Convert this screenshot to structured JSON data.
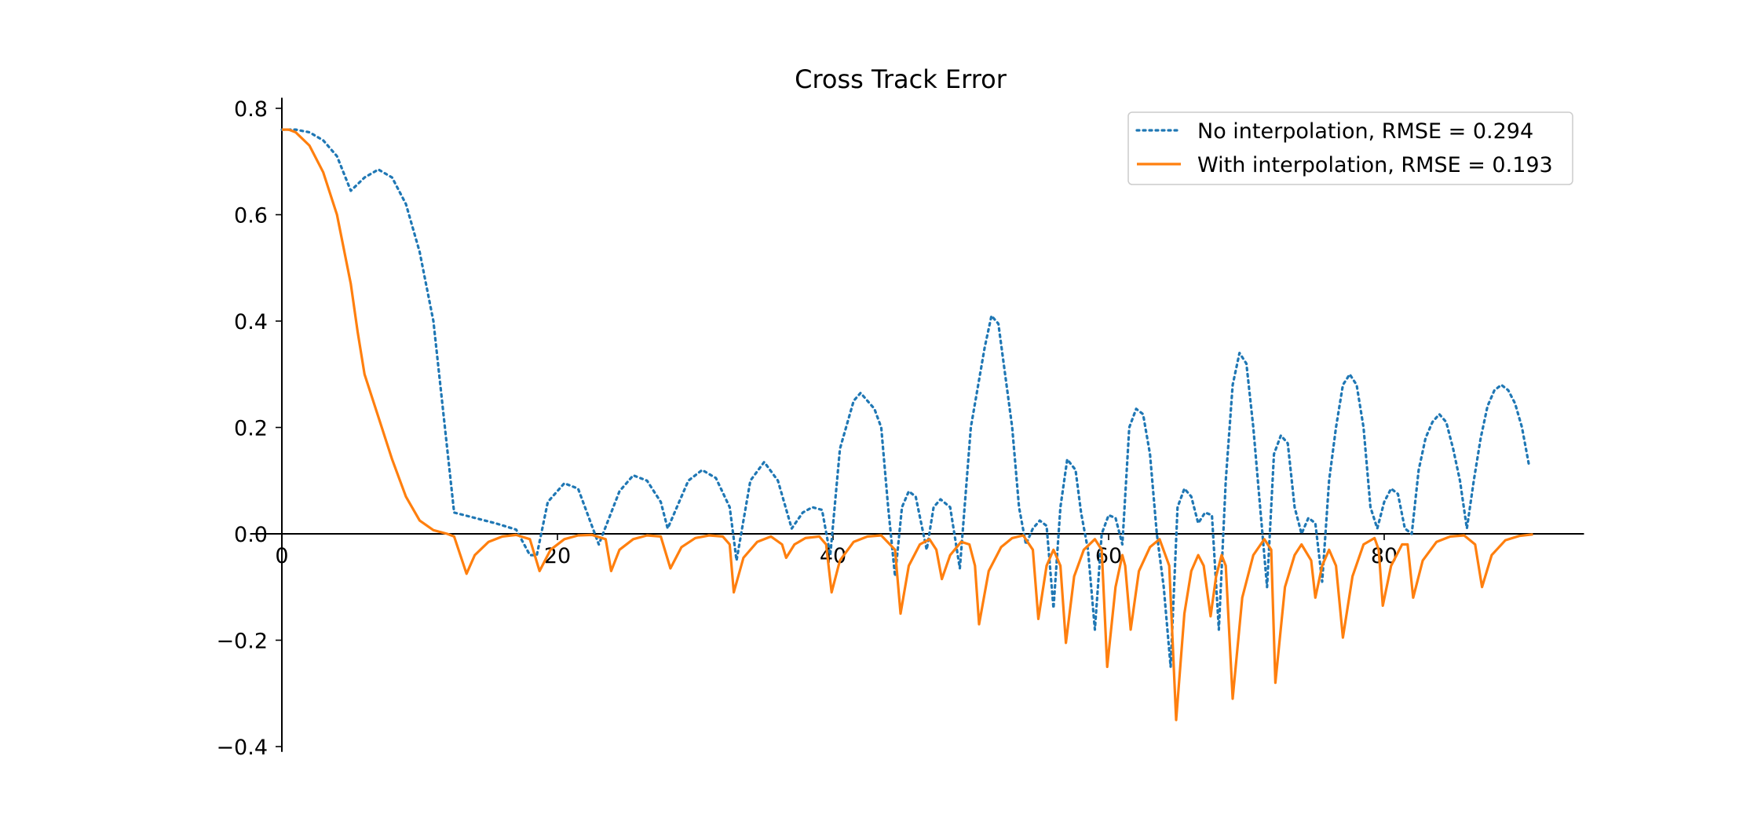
{
  "chart_data": {
    "type": "line",
    "title": "Cross Track Error",
    "xlabel": "",
    "ylabel": "",
    "xlim": [
      -2.3,
      94.5
    ],
    "ylim": [
      -0.41,
      0.82
    ],
    "x_ticks": [
      0,
      20,
      40,
      60,
      80
    ],
    "x_tick_labels": [
      "0",
      "20",
      "40",
      "60",
      "80"
    ],
    "y_ticks": [
      0.8,
      0.6,
      0.4,
      0.2,
      0.0,
      -0.2,
      -0.4
    ],
    "y_tick_labels": [
      "0.8",
      "0.6",
      "0.4",
      "0.2",
      "0.0",
      "−0.2",
      "−0.4"
    ],
    "grid": false,
    "legend_position": "top-right",
    "series": [
      {
        "name": "No interpolation, RMSE = 0.294",
        "style": "dotted",
        "color": "#1f77b4",
        "points": [
          [
            0,
            0.76
          ],
          [
            1,
            0.76
          ],
          [
            2,
            0.755
          ],
          [
            3,
            0.74
          ],
          [
            4,
            0.71
          ],
          [
            5,
            0.645
          ],
          [
            6,
            0.67
          ],
          [
            7,
            0.685
          ],
          [
            8,
            0.67
          ],
          [
            9,
            0.62
          ],
          [
            10,
            0.53
          ],
          [
            11,
            0.4
          ],
          [
            12.5,
            0.04
          ],
          [
            14,
            0.03
          ],
          [
            15.5,
            0.02
          ],
          [
            17,
            0.008
          ],
          [
            18,
            -0.04
          ],
          [
            18.5,
            -0.04
          ],
          [
            19.3,
            0.06
          ],
          [
            20.5,
            0.095
          ],
          [
            21.5,
            0.085
          ],
          [
            23,
            -0.02
          ],
          [
            24.5,
            0.08
          ],
          [
            25.5,
            0.11
          ],
          [
            26.5,
            0.1
          ],
          [
            27.5,
            0.06
          ],
          [
            28,
            0.01
          ],
          [
            29.5,
            0.1
          ],
          [
            30.5,
            0.12
          ],
          [
            31.5,
            0.105
          ],
          [
            32.5,
            0.05
          ],
          [
            33,
            -0.05
          ],
          [
            34,
            0.1
          ],
          [
            35,
            0.135
          ],
          [
            36,
            0.1
          ],
          [
            37,
            0.01
          ],
          [
            37.8,
            0.04
          ],
          [
            38.5,
            0.05
          ],
          [
            39.2,
            0.045
          ],
          [
            39.8,
            -0.04
          ],
          [
            40.5,
            0.16
          ],
          [
            41.5,
            0.25
          ],
          [
            42,
            0.265
          ],
          [
            43,
            0.235
          ],
          [
            43.5,
            0.2
          ],
          [
            44,
            0.05
          ],
          [
            44.5,
            -0.08
          ],
          [
            45,
            0.05
          ],
          [
            45.5,
            0.08
          ],
          [
            46,
            0.07
          ],
          [
            46.8,
            -0.03
          ],
          [
            47.3,
            0.05
          ],
          [
            47.8,
            0.065
          ],
          [
            48.5,
            0.05
          ],
          [
            49.2,
            -0.065
          ],
          [
            50,
            0.2
          ],
          [
            51,
            0.35
          ],
          [
            51.5,
            0.41
          ],
          [
            52,
            0.395
          ],
          [
            53,
            0.2
          ],
          [
            53.5,
            0.05
          ],
          [
            54,
            -0.02
          ],
          [
            54.5,
            0.01
          ],
          [
            55,
            0.025
          ],
          [
            55.5,
            0.015
          ],
          [
            56,
            -0.14
          ],
          [
            56.5,
            0.05
          ],
          [
            57,
            0.14
          ],
          [
            57.6,
            0.12
          ],
          [
            58,
            0.04
          ],
          [
            58.5,
            -0.03
          ],
          [
            59,
            -0.18
          ],
          [
            59.5,
            0.0
          ],
          [
            60,
            0.035
          ],
          [
            60.5,
            0.03
          ],
          [
            61,
            -0.02
          ],
          [
            61.5,
            0.2
          ],
          [
            62,
            0.235
          ],
          [
            62.5,
            0.225
          ],
          [
            63,
            0.15
          ],
          [
            63.5,
            0.0
          ],
          [
            64,
            -0.1
          ],
          [
            64.5,
            -0.25
          ],
          [
            65,
            0.05
          ],
          [
            65.5,
            0.085
          ],
          [
            66,
            0.07
          ],
          [
            66.5,
            0.02
          ],
          [
            67,
            0.04
          ],
          [
            67.5,
            0.035
          ],
          [
            68,
            -0.18
          ],
          [
            68.5,
            0.1
          ],
          [
            69,
            0.28
          ],
          [
            69.5,
            0.34
          ],
          [
            70,
            0.32
          ],
          [
            70.5,
            0.2
          ],
          [
            71,
            0.05
          ],
          [
            71.5,
            -0.1
          ],
          [
            72,
            0.15
          ],
          [
            72.5,
            0.185
          ],
          [
            73,
            0.17
          ],
          [
            73.5,
            0.05
          ],
          [
            74,
            0.0
          ],
          [
            74.5,
            0.03
          ],
          [
            75,
            0.02
          ],
          [
            75.5,
            -0.09
          ],
          [
            76,
            0.1
          ],
          [
            76.5,
            0.2
          ],
          [
            77,
            0.28
          ],
          [
            77.5,
            0.3
          ],
          [
            78,
            0.28
          ],
          [
            78.5,
            0.2
          ],
          [
            79,
            0.05
          ],
          [
            79.5,
            0.01
          ],
          [
            80,
            0.06
          ],
          [
            80.5,
            0.085
          ],
          [
            81,
            0.075
          ],
          [
            81.5,
            0.01
          ],
          [
            82,
            0.0
          ],
          [
            82.5,
            0.12
          ],
          [
            83,
            0.18
          ],
          [
            83.5,
            0.21
          ],
          [
            84,
            0.225
          ],
          [
            84.5,
            0.21
          ],
          [
            85,
            0.16
          ],
          [
            85.5,
            0.1
          ],
          [
            86,
            0.01
          ],
          [
            86.5,
            0.1
          ],
          [
            87,
            0.18
          ],
          [
            87.5,
            0.24
          ],
          [
            88,
            0.27
          ],
          [
            88.5,
            0.28
          ],
          [
            89,
            0.27
          ],
          [
            89.5,
            0.245
          ],
          [
            90,
            0.2
          ],
          [
            90.5,
            0.13
          ]
        ]
      },
      {
        "name": "With interpolation, RMSE = 0.193",
        "style": "solid",
        "color": "#ff7f0e",
        "points": [
          [
            0,
            0.76
          ],
          [
            0.5,
            0.76
          ],
          [
            1,
            0.755
          ],
          [
            2,
            0.73
          ],
          [
            3,
            0.68
          ],
          [
            4,
            0.6
          ],
          [
            5,
            0.47
          ],
          [
            5.5,
            0.38
          ],
          [
            6,
            0.3
          ],
          [
            7,
            0.22
          ],
          [
            8,
            0.14
          ],
          [
            9,
            0.07
          ],
          [
            10,
            0.025
          ],
          [
            11,
            0.007
          ],
          [
            12,
            0.0
          ],
          [
            12.5,
            -0.005
          ],
          [
            13.4,
            -0.075
          ],
          [
            14,
            -0.04
          ],
          [
            15,
            -0.015
          ],
          [
            16,
            -0.005
          ],
          [
            17,
            -0.002
          ],
          [
            18,
            -0.01
          ],
          [
            18.7,
            -0.07
          ],
          [
            19.5,
            -0.03
          ],
          [
            20.5,
            -0.01
          ],
          [
            21.5,
            -0.003
          ],
          [
            22.5,
            -0.002
          ],
          [
            23.5,
            -0.01
          ],
          [
            23.9,
            -0.07
          ],
          [
            24.5,
            -0.03
          ],
          [
            25.5,
            -0.01
          ],
          [
            26.5,
            -0.003
          ],
          [
            27.5,
            -0.005
          ],
          [
            28.2,
            -0.065
          ],
          [
            29,
            -0.025
          ],
          [
            30,
            -0.008
          ],
          [
            31,
            -0.003
          ],
          [
            32,
            -0.005
          ],
          [
            32.5,
            -0.02
          ],
          [
            32.8,
            -0.11
          ],
          [
            33.5,
            -0.045
          ],
          [
            34.5,
            -0.015
          ],
          [
            35.5,
            -0.005
          ],
          [
            36.3,
            -0.02
          ],
          [
            36.6,
            -0.045
          ],
          [
            37.2,
            -0.02
          ],
          [
            38,
            -0.008
          ],
          [
            39,
            -0.005
          ],
          [
            39.5,
            -0.02
          ],
          [
            39.9,
            -0.11
          ],
          [
            40.5,
            -0.05
          ],
          [
            41.5,
            -0.015
          ],
          [
            42.5,
            -0.005
          ],
          [
            43.5,
            -0.003
          ],
          [
            44.5,
            -0.03
          ],
          [
            44.9,
            -0.15
          ],
          [
            45.5,
            -0.06
          ],
          [
            46.3,
            -0.02
          ],
          [
            47,
            -0.01
          ],
          [
            47.5,
            -0.03
          ],
          [
            47.9,
            -0.085
          ],
          [
            48.5,
            -0.04
          ],
          [
            49.3,
            -0.015
          ],
          [
            49.9,
            -0.02
          ],
          [
            50.3,
            -0.06
          ],
          [
            50.6,
            -0.17
          ],
          [
            51.3,
            -0.07
          ],
          [
            52.2,
            -0.025
          ],
          [
            53,
            -0.008
          ],
          [
            53.8,
            -0.003
          ],
          [
            54.5,
            -0.03
          ],
          [
            54.9,
            -0.16
          ],
          [
            55.5,
            -0.06
          ],
          [
            56,
            -0.03
          ],
          [
            56.5,
            -0.06
          ],
          [
            56.9,
            -0.205
          ],
          [
            57.5,
            -0.08
          ],
          [
            58.2,
            -0.03
          ],
          [
            59,
            -0.01
          ],
          [
            59.5,
            -0.03
          ],
          [
            59.9,
            -0.25
          ],
          [
            60.5,
            -0.1
          ],
          [
            61,
            -0.04
          ],
          [
            61.2,
            -0.06
          ],
          [
            61.6,
            -0.18
          ],
          [
            62.2,
            -0.07
          ],
          [
            63,
            -0.025
          ],
          [
            63.7,
            -0.01
          ],
          [
            64.4,
            -0.06
          ],
          [
            64.9,
            -0.35
          ],
          [
            65.5,
            -0.15
          ],
          [
            66,
            -0.07
          ],
          [
            66.5,
            -0.04
          ],
          [
            66.9,
            -0.06
          ],
          [
            67.4,
            -0.155
          ],
          [
            67.8,
            -0.08
          ],
          [
            68.2,
            -0.04
          ],
          [
            68.5,
            -0.06
          ],
          [
            69,
            -0.31
          ],
          [
            69.7,
            -0.12
          ],
          [
            70.5,
            -0.04
          ],
          [
            71.3,
            -0.01
          ],
          [
            71.8,
            -0.03
          ],
          [
            72.1,
            -0.28
          ],
          [
            72.8,
            -0.1
          ],
          [
            73.5,
            -0.04
          ],
          [
            74,
            -0.02
          ],
          [
            74.7,
            -0.05
          ],
          [
            75,
            -0.12
          ],
          [
            75.5,
            -0.06
          ],
          [
            76,
            -0.03
          ],
          [
            76.5,
            -0.06
          ],
          [
            77,
            -0.195
          ],
          [
            77.7,
            -0.08
          ],
          [
            78.5,
            -0.02
          ],
          [
            79.3,
            -0.008
          ],
          [
            79.6,
            -0.03
          ],
          [
            79.9,
            -0.135
          ],
          [
            80.5,
            -0.06
          ],
          [
            81.3,
            -0.02
          ],
          [
            81.7,
            -0.02
          ],
          [
            82.1,
            -0.12
          ],
          [
            82.8,
            -0.05
          ],
          [
            83.8,
            -0.015
          ],
          [
            84.8,
            -0.005
          ],
          [
            85.8,
            -0.003
          ],
          [
            86.6,
            -0.02
          ],
          [
            87.1,
            -0.1
          ],
          [
            87.8,
            -0.04
          ],
          [
            88.8,
            -0.012
          ],
          [
            89.8,
            -0.004
          ],
          [
            90.8,
            -0.001
          ]
        ]
      }
    ]
  }
}
